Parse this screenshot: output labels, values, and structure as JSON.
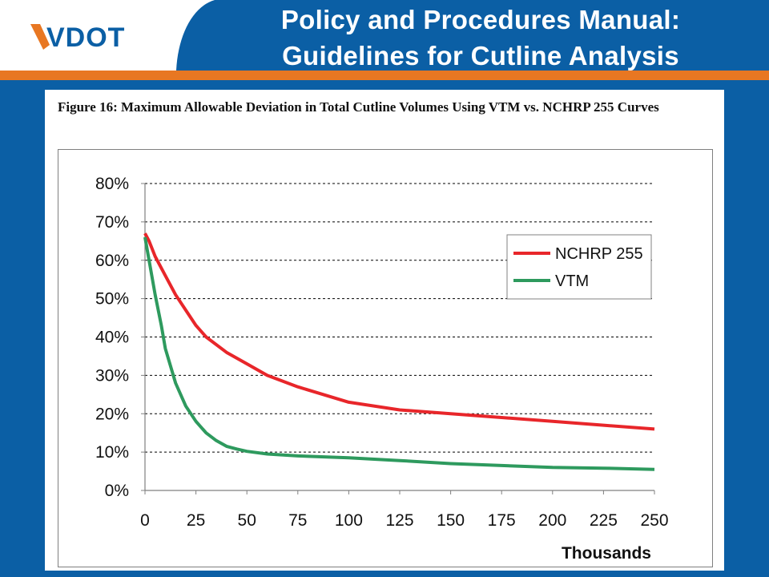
{
  "header": {
    "logo_text": "VDOT",
    "title_line1": "Policy and Procedures Manual:",
    "title_line2": "Guidelines for Cutline Analysis",
    "colors": {
      "orange": "#e87722",
      "blue": "#0b5fa5",
      "white": "#ffffff"
    }
  },
  "figure": {
    "caption": "Figure 16: Maximum Allowable Deviation in Total Cutline Volumes Using VTM vs. NCHRP 255 Curves"
  },
  "chart_data": {
    "type": "line",
    "title": "",
    "xlabel": "Thousands",
    "ylabel": "",
    "xlim": [
      0,
      250
    ],
    "ylim": [
      0,
      80
    ],
    "x_ticks": [
      0,
      25,
      50,
      75,
      100,
      125,
      150,
      175,
      200,
      225,
      250
    ],
    "y_ticks": [
      "0%",
      "10%",
      "20%",
      "30%",
      "40%",
      "50%",
      "60%",
      "70%",
      "80%"
    ],
    "grid": "horizontal dashed",
    "legend_position": "top-right",
    "series": [
      {
        "name": "NCHRP 255",
        "color": "#e8262a",
        "x": [
          0,
          2,
          5,
          10,
          15,
          20,
          25,
          30,
          40,
          50,
          60,
          75,
          100,
          125,
          150,
          175,
          200,
          225,
          250
        ],
        "y": [
          67,
          65,
          61,
          56,
          51,
          47,
          43,
          40,
          36,
          33,
          30,
          27,
          23,
          21,
          20,
          19,
          18,
          17,
          16
        ]
      },
      {
        "name": "VTM",
        "color": "#2e9a5e",
        "x": [
          0,
          2,
          5,
          8,
          10,
          15,
          20,
          25,
          30,
          35,
          40,
          45,
          50,
          60,
          75,
          100,
          125,
          150,
          175,
          200,
          225,
          250
        ],
        "y": [
          66,
          60,
          51,
          43,
          37,
          28,
          22,
          18,
          15,
          13,
          11.5,
          10.8,
          10.2,
          9.5,
          9,
          8.5,
          7.8,
          7,
          6.5,
          6,
          5.8,
          5.5
        ]
      }
    ]
  }
}
